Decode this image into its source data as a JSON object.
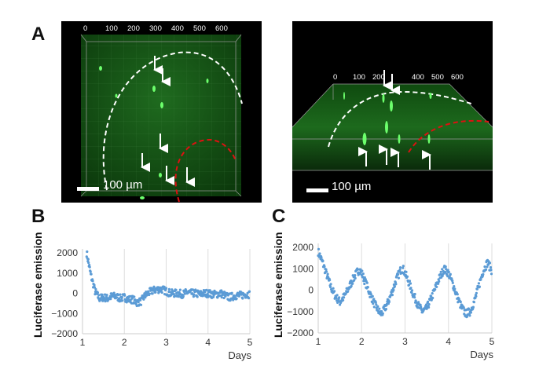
{
  "panels": {
    "a": {
      "label": "A",
      "axis_ticks": [
        "0",
        "100",
        "200",
        "300",
        "400",
        "500",
        "600"
      ],
      "scale_bar": "100 µm",
      "colors": {
        "background": "#000000",
        "tissue": "#1f7a1f",
        "cells": "#5dff5d",
        "dashed_white": "#ffffff",
        "dashed_red": "#dd1111",
        "arrows": "#ffffff"
      }
    },
    "a_right": {
      "axis_ticks": [
        "0",
        "100",
        "200",
        "",
        "400",
        "500",
        "600"
      ],
      "scale_bar": "100 µm"
    },
    "b": {
      "label": "B"
    },
    "c": {
      "label": "C"
    }
  },
  "chart_data": [
    {
      "type": "scatter",
      "panel": "B",
      "xlabel": "Days",
      "ylabel": "Luciferase emission",
      "xlim": [
        1,
        5
      ],
      "ylim": [
        -2000,
        2000
      ],
      "xticks": [
        "1",
        "2",
        "3",
        "4",
        "5"
      ],
      "yticks": [
        "2000",
        "1000",
        "0",
        "−1000",
        "−2000"
      ],
      "grid": "vertical",
      "color": "#5b9bd5",
      "x": [
        1.1,
        1.2,
        1.3,
        1.4,
        1.5,
        1.6,
        1.7,
        1.8,
        1.9,
        2.0,
        2.1,
        2.2,
        2.3,
        2.4,
        2.5,
        2.6,
        2.7,
        2.8,
        2.9,
        3.0,
        3.1,
        3.2,
        3.3,
        3.4,
        3.5,
        3.6,
        3.7,
        3.8,
        3.9,
        4.0,
        4.1,
        4.2,
        4.3,
        4.4,
        4.5,
        4.6,
        4.7,
        4.8,
        4.9,
        5.0
      ],
      "y": [
        2000,
        900,
        100,
        -250,
        -200,
        -250,
        -150,
        -150,
        -250,
        -200,
        -300,
        -300,
        -450,
        -400,
        -100,
        50,
        150,
        200,
        200,
        100,
        0,
        0,
        0,
        -50,
        50,
        0,
        0,
        -50,
        0,
        0,
        -50,
        -50,
        0,
        -100,
        -200,
        -150,
        -100,
        -100,
        -50,
        -50
      ]
    },
    {
      "type": "scatter",
      "panel": "C",
      "xlabel": "Days",
      "ylabel": "Luciferase emission",
      "xlim": [
        1,
        5
      ],
      "ylim": [
        -2000,
        2000
      ],
      "xticks": [
        "1",
        "2",
        "3",
        "4",
        "5"
      ],
      "yticks": [
        "2000",
        "1000",
        "0",
        "−1000",
        "−2000"
      ],
      "grid": "vertical",
      "color": "#5b9bd5",
      "x": [
        1.0,
        1.1,
        1.2,
        1.3,
        1.4,
        1.5,
        1.6,
        1.7,
        1.8,
        1.9,
        1.95,
        2.0,
        2.1,
        2.2,
        2.3,
        2.4,
        2.45,
        2.5,
        2.6,
        2.7,
        2.8,
        2.9,
        2.95,
        3.0,
        3.1,
        3.2,
        3.3,
        3.4,
        3.5,
        3.6,
        3.7,
        3.8,
        3.9,
        4.0,
        4.1,
        4.2,
        4.3,
        4.4,
        4.5,
        4.6,
        4.7,
        4.8,
        4.9,
        5.0
      ],
      "y": [
        1800,
        1300,
        700,
        100,
        -300,
        -550,
        -300,
        100,
        500,
        850,
        950,
        800,
        300,
        -200,
        -650,
        -1000,
        -1100,
        -1000,
        -600,
        -100,
        500,
        950,
        1000,
        800,
        300,
        -250,
        -700,
        -1000,
        -850,
        -400,
        100,
        600,
        1000,
        800,
        300,
        -300,
        -800,
        -1100,
        -1000,
        -500,
        200,
        900,
        1300,
        900
      ]
    }
  ]
}
